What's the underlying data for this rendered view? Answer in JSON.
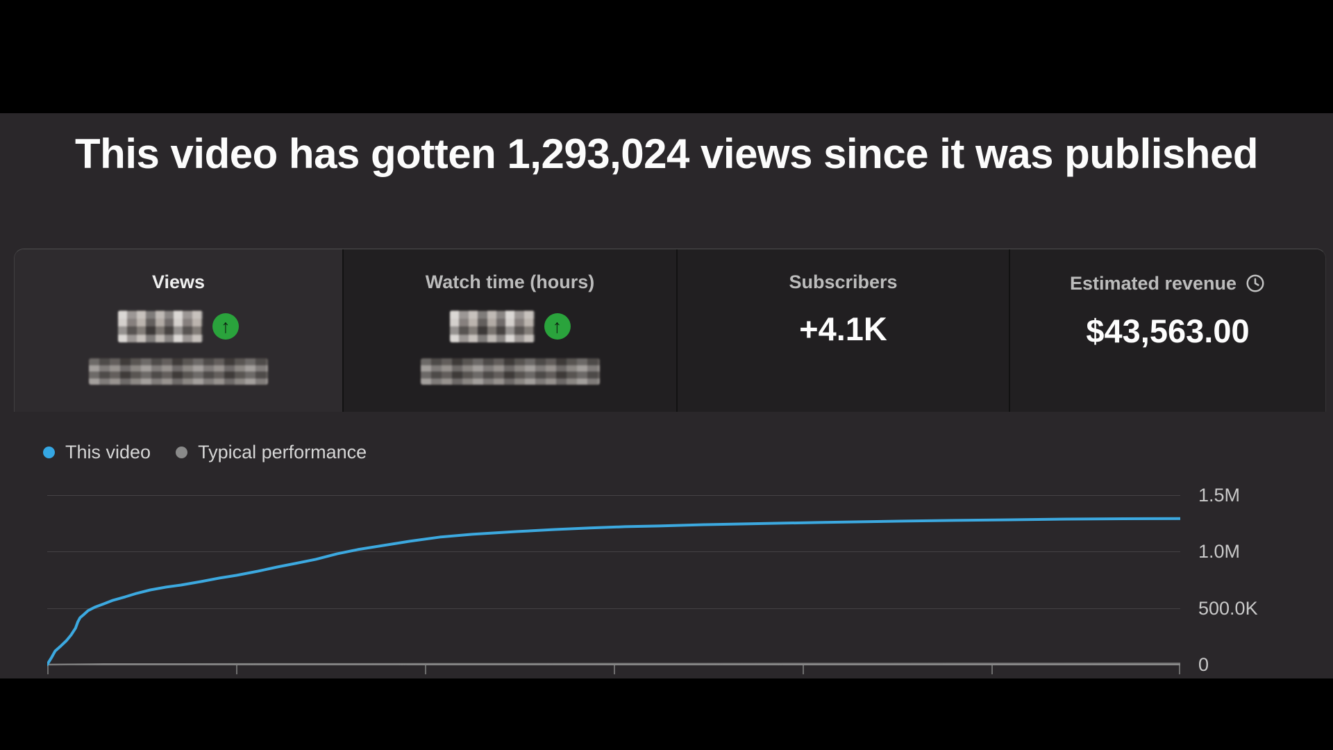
{
  "headline": "This video has gotten 1,293,024 views since it was published",
  "tabs": {
    "views": {
      "label": "Views",
      "selected": true,
      "value_redacted": true,
      "subtitle_redacted": true,
      "trend": "up"
    },
    "watch_time": {
      "label": "Watch time (hours)",
      "selected": false,
      "value_redacted": true,
      "subtitle_redacted": true,
      "trend": "up"
    },
    "subscribers": {
      "label": "Subscribers",
      "selected": false,
      "value": "+4.1K"
    },
    "estimated_revenue": {
      "label": "Estimated revenue",
      "selected": false,
      "value": "$43,563.00",
      "info_icon": "clock-icon"
    }
  },
  "legend": [
    {
      "label": "This video",
      "color": "#35a7e3"
    },
    {
      "label": "Typical performance",
      "color": "#8a8a8a"
    }
  ],
  "colors": {
    "page_background": "#000000",
    "panel_background": "#2a272a",
    "card_background": "#211f21",
    "line_blue": "#3ca9e0",
    "legend_gray": "#8a8a8a",
    "trend_green": "#2aa33c"
  },
  "chart_data": {
    "type": "line",
    "title": "",
    "xlabel": "",
    "ylabel": "",
    "yticks": [
      "1.5M",
      "1.0M",
      "500.0K",
      "0"
    ],
    "ytick_values": [
      1500000,
      1000000,
      500000,
      0
    ],
    "ylim": [
      0,
      1550000
    ],
    "x_is_fraction_of_timeline": true,
    "x_axis_labels_visible": false,
    "x_tick_count": 7,
    "grid": true,
    "legend_position": "top-left",
    "series": [
      {
        "name": "Typical performance",
        "color": "#7d7d7d",
        "points": [
          [
            0,
            0
          ],
          [
            0.05,
            4000
          ],
          [
            0.5,
            7000
          ],
          [
            1,
            9000
          ]
        ]
      },
      {
        "name": "This video",
        "color": "#3ca9e0",
        "points": [
          [
            0,
            0
          ],
          [
            0.004,
            65000
          ],
          [
            0.007,
            120000
          ],
          [
            0.012,
            165000
          ],
          [
            0.017,
            212000
          ],
          [
            0.021,
            261000
          ],
          [
            0.025,
            323000
          ],
          [
            0.027,
            378000
          ],
          [
            0.029,
            415000
          ],
          [
            0.032,
            440000
          ],
          [
            0.036,
            477000
          ],
          [
            0.042,
            508000
          ],
          [
            0.05,
            538000
          ],
          [
            0.058,
            569000
          ],
          [
            0.069,
            600000
          ],
          [
            0.079,
            631000
          ],
          [
            0.091,
            661000
          ],
          [
            0.105,
            686000
          ],
          [
            0.118,
            704000
          ],
          [
            0.136,
            735000
          ],
          [
            0.152,
            766000
          ],
          [
            0.167,
            790000
          ],
          [
            0.186,
            827000
          ],
          [
            0.203,
            864000
          ],
          [
            0.219,
            895000
          ],
          [
            0.237,
            932000
          ],
          [
            0.256,
            981000
          ],
          [
            0.274,
            1018000
          ],
          [
            0.297,
            1055000
          ],
          [
            0.32,
            1092000
          ],
          [
            0.347,
            1129000
          ],
          [
            0.375,
            1153000
          ],
          [
            0.415,
            1178000
          ],
          [
            0.448,
            1196000
          ],
          [
            0.479,
            1209000
          ],
          [
            0.51,
            1221000
          ],
          [
            0.54,
            1227000
          ],
          [
            0.58,
            1239000
          ],
          [
            0.62,
            1246000
          ],
          [
            0.651,
            1252000
          ],
          [
            0.681,
            1258000
          ],
          [
            0.718,
            1264000
          ],
          [
            0.755,
            1270000
          ],
          [
            0.8,
            1276000
          ],
          [
            0.85,
            1282000
          ],
          [
            0.9,
            1288000
          ],
          [
            0.95,
            1291000
          ],
          [
            1,
            1293024
          ]
        ]
      }
    ]
  }
}
